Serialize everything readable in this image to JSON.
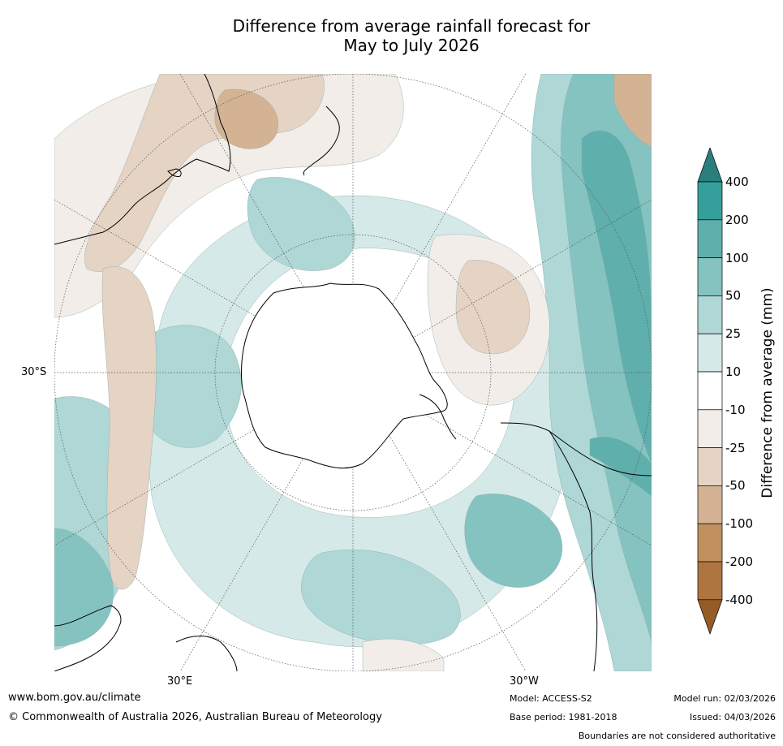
{
  "title": {
    "line1": "Difference from average rainfall forecast for",
    "line2": "May to July 2026"
  },
  "map": {
    "projection": "south-polar-stereographic",
    "labels": {
      "lat_30s": "30°S",
      "lon_30e": "30°E",
      "lon_30w": "30°W"
    },
    "land_outline_color": "#000000",
    "graticule_color": "#555555"
  },
  "legend": {
    "title": "Difference from average (mm)",
    "ticks": [
      "400",
      "200",
      "100",
      "50",
      "25",
      "10",
      "-10",
      "-25",
      "-50",
      "-100",
      "-200",
      "-400"
    ],
    "colors": {
      "over": "#2a7f7e",
      "200_400": "#35a09b",
      "100_200": "#5fafad",
      "50_100": "#85c3c1",
      "25_50": "#aed7d6",
      "10_25": "#d5e9e8",
      "neg10_10": "#ffffff",
      "neg25_neg10": "#f2ede8",
      "neg50_neg25": "#e5d3c4",
      "neg100_neg50": "#d3b394",
      "neg200_neg100": "#c0915f",
      "neg400_neg200": "#ae7540",
      "under": "#965c25"
    }
  },
  "footer": {
    "website": "www.bom.gov.au/climate",
    "copyright": "© Commonwealth of Australia 2026, Australian Bureau of Meteorology",
    "model": "Model: ACCESS-S2",
    "base_period": "Base period: 1981-2018",
    "model_run": "Model run: 02/03/2026",
    "issued": "Issued: 04/03/2026",
    "disclaimer": "Boundaries are not considered authoritative"
  }
}
